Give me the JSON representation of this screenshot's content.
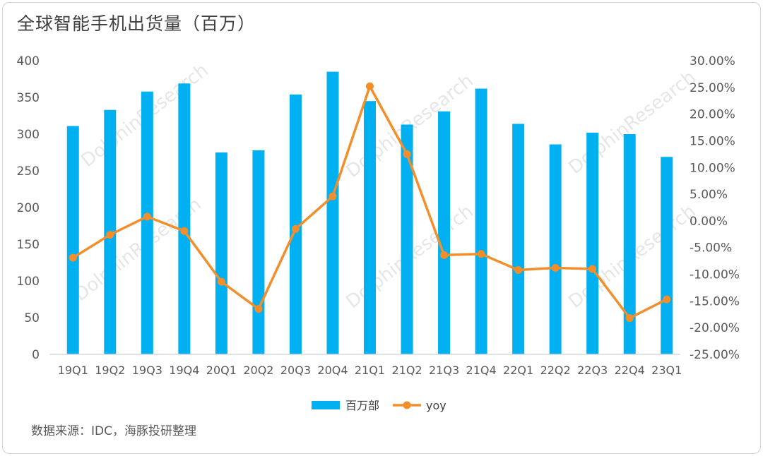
{
  "title": "全球智能手机出货量（百万）",
  "source": "数据来源：IDC，海豚投研整理",
  "watermark": "DolphinResearch",
  "colors": {
    "bar": "#00b0f0",
    "line": "#f28e2b",
    "axis": "#d9d9d9",
    "text": "#595959"
  },
  "chart_data": {
    "type": "bar+line",
    "categories": [
      "19Q1",
      "19Q2",
      "19Q3",
      "19Q4",
      "20Q1",
      "20Q2",
      "20Q3",
      "20Q4",
      "21Q1",
      "21Q2",
      "21Q3",
      "21Q4",
      "22Q1",
      "22Q2",
      "22Q3",
      "22Q4",
      "23Q1"
    ],
    "series": [
      {
        "name": "百万部",
        "type": "bar",
        "axis": "left",
        "values": [
          311,
          333,
          358,
          369,
          275,
          278,
          354,
          385,
          345,
          313,
          331,
          362,
          314,
          286,
          302,
          300,
          269
        ]
      },
      {
        "name": "yoy",
        "type": "line",
        "axis": "right",
        "values": [
          -6.9,
          -2.6,
          0.8,
          -1.9,
          -11.4,
          -16.5,
          -1.5,
          4.6,
          25.2,
          12.5,
          -6.4,
          -6.2,
          -9.2,
          -8.8,
          -9.0,
          -18.2,
          -14.7
        ]
      }
    ],
    "left_axis": {
      "ylim": [
        0,
        400
      ],
      "ticks": [
        "0",
        "50",
        "100",
        "150",
        "200",
        "250",
        "300",
        "350",
        "400"
      ]
    },
    "right_axis": {
      "ylim": [
        -25,
        30
      ],
      "ticks": [
        "-25.00%",
        "-20.00%",
        "-15.00%",
        "-10.00%",
        "-5.00%",
        "0.00%",
        "5.00%",
        "10.00%",
        "15.00%",
        "20.00%",
        "25.00%",
        "30.00%"
      ]
    },
    "legend": {
      "placement": "bottom-center",
      "entries": [
        "百万部",
        "yoy"
      ]
    },
    "grid": false
  }
}
